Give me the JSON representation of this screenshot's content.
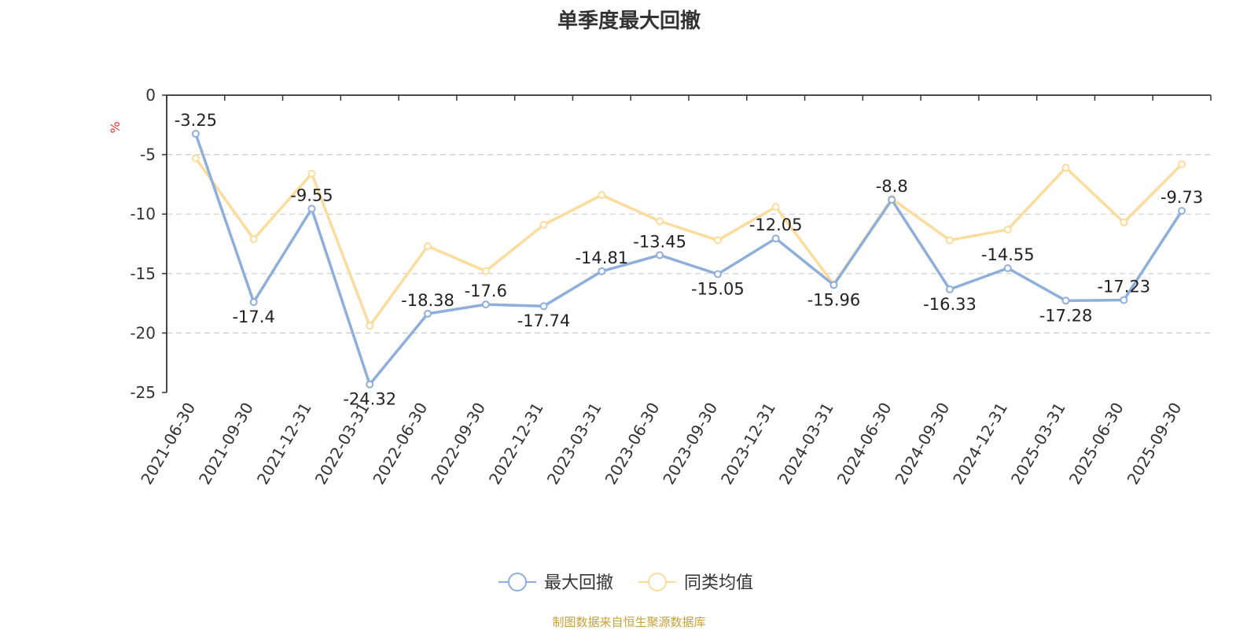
{
  "source_note": "制图数据来自恒生聚源数据库",
  "chart_data": {
    "type": "line",
    "title": "单季度最大回撤",
    "ylabel": "%",
    "xlabel": "",
    "ylim": [
      -25,
      0
    ],
    "yticks": [
      0,
      -5,
      -10,
      -15,
      -20,
      -25
    ],
    "grid": true,
    "legend_position": "bottom-center",
    "categories": [
      "2021-06-30",
      "2021-09-30",
      "2021-12-31",
      "2022-03-31",
      "2022-06-30",
      "2022-09-30",
      "2022-12-31",
      "2023-03-31",
      "2023-06-30",
      "2023-09-30",
      "2023-12-31",
      "2024-03-31",
      "2024-06-30",
      "2024-09-30",
      "2024-12-31",
      "2025-03-31",
      "2025-06-30",
      "2025-09-30"
    ],
    "series": [
      {
        "name": "最大回撤",
        "color": "#8eaedb",
        "show_labels": true,
        "values": [
          -3.25,
          -17.4,
          -9.55,
          -24.32,
          -18.38,
          -17.6,
          -17.74,
          -14.81,
          -13.45,
          -15.05,
          -12.05,
          -15.96,
          -8.8,
          -16.33,
          -14.55,
          -17.28,
          -17.23,
          -9.73
        ]
      },
      {
        "name": "同类均值",
        "color": "#fcdc9c",
        "show_labels": false,
        "values": [
          -5.3,
          -12.1,
          -6.6,
          -19.4,
          -12.7,
          -14.8,
          -10.9,
          -8.4,
          -10.6,
          -12.2,
          -9.4,
          -15.9,
          -8.7,
          -12.2,
          -11.3,
          -6.1,
          -10.7,
          -5.8
        ]
      }
    ]
  }
}
